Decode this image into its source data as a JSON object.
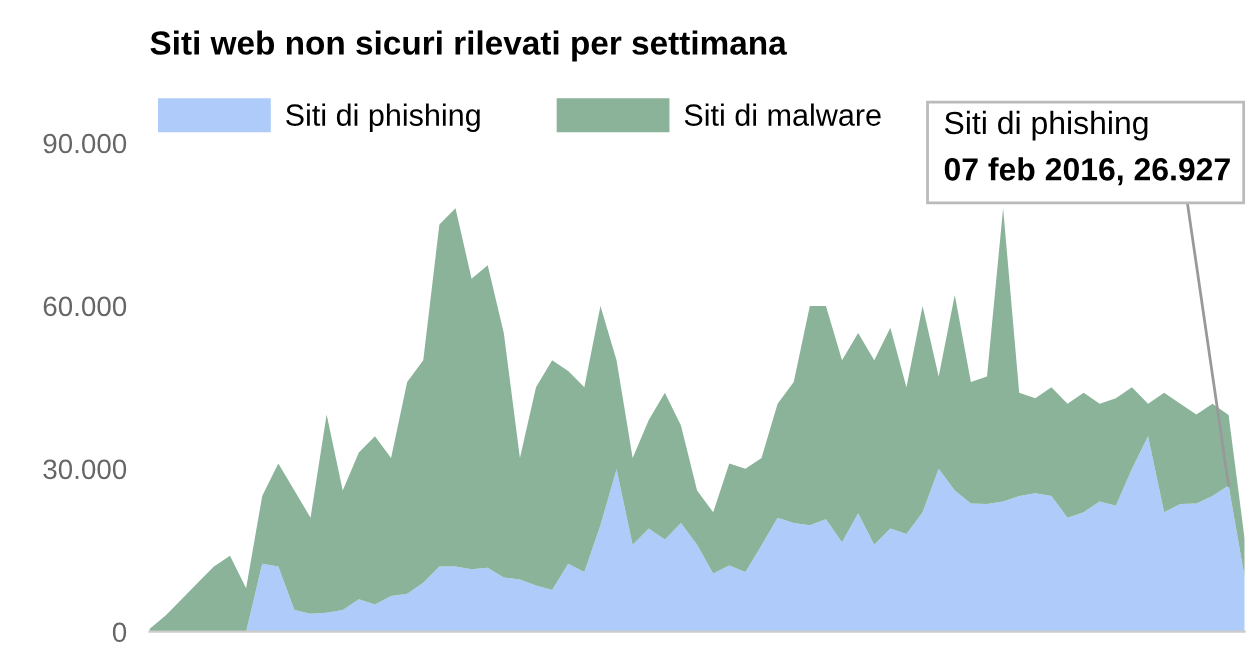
{
  "chart_data": {
    "type": "area",
    "stacked": true,
    "title": "Siti web non sicuri rilevati per settimana",
    "categories": [
      null,
      null,
      null,
      null,
      null,
      null,
      null,
      null,
      null,
      null,
      null,
      null,
      null,
      null,
      null,
      null,
      null,
      null,
      null,
      null,
      null,
      null,
      null,
      null,
      null,
      null,
      null,
      null,
      null,
      null,
      null,
      null,
      null,
      null,
      null,
      null,
      null,
      null,
      null,
      null,
      null,
      null,
      null,
      null,
      null,
      null,
      null,
      null,
      null,
      null,
      null,
      null,
      null,
      null,
      null,
      null,
      null,
      null,
      null,
      null,
      null,
      null,
      null,
      null,
      null,
      null,
      null,
      null,
      null
    ],
    "series": [
      {
        "name": "Siti di phishing",
        "color": "#aecbfa",
        "values": [
          0,
          0,
          0,
          0,
          0,
          0,
          0,
          12500,
          12000,
          4000,
          3300,
          3500,
          4000,
          6000,
          5000,
          6600,
          7000,
          9000,
          12000,
          12000,
          11500,
          11800,
          10000,
          9600,
          8500,
          7700,
          12500,
          11000,
          19600,
          29900,
          16000,
          19000,
          17000,
          20000,
          16000,
          10700,
          12200,
          11000,
          15900,
          21000,
          20000,
          19600,
          20700,
          16500,
          21800,
          16000,
          19000,
          18000,
          22000,
          30000,
          26000,
          23600,
          23500,
          24000,
          25000,
          25500,
          25000,
          21000,
          22000,
          24000,
          23200,
          30000,
          36000,
          22000,
          23500,
          23600,
          25000,
          26927,
          10000
        ]
      },
      {
        "name": "Siti di malware",
        "color": "#8ab39a",
        "values": [
          500,
          3000,
          6000,
          9000,
          12000,
          14000,
          8000,
          12500,
          19000,
          22000,
          17700,
          36500,
          22000,
          27000,
          31000,
          25400,
          39000,
          41000,
          63000,
          66000,
          53500,
          55700,
          45000,
          22400,
          36500,
          42300,
          35500,
          34000,
          40400,
          20100,
          16000,
          20000,
          27000,
          18000,
          10000,
          11300,
          18800,
          19000,
          16100,
          21000,
          26000,
          40400,
          39300,
          33500,
          33200,
          34000,
          37000,
          27000,
          38000,
          17000,
          36000,
          22400,
          23500,
          54000,
          19000,
          17500,
          20000,
          21000,
          22000,
          18000,
          19800,
          15000,
          6000,
          22000,
          18500,
          16400,
          17000,
          13000,
          7000
        ]
      }
    ],
    "ylim": [
      0,
      90000
    ],
    "yticks": [
      0,
      {
        "value": 30000,
        "label": "30.000"
      },
      {
        "value": 60000,
        "label": "60.000"
      },
      {
        "value": 90000,
        "label": "90.000"
      }
    ],
    "legend": "top left",
    "annotations": [
      "Siti di phishing",
      "07 feb 2016, 26.927"
    ]
  }
}
